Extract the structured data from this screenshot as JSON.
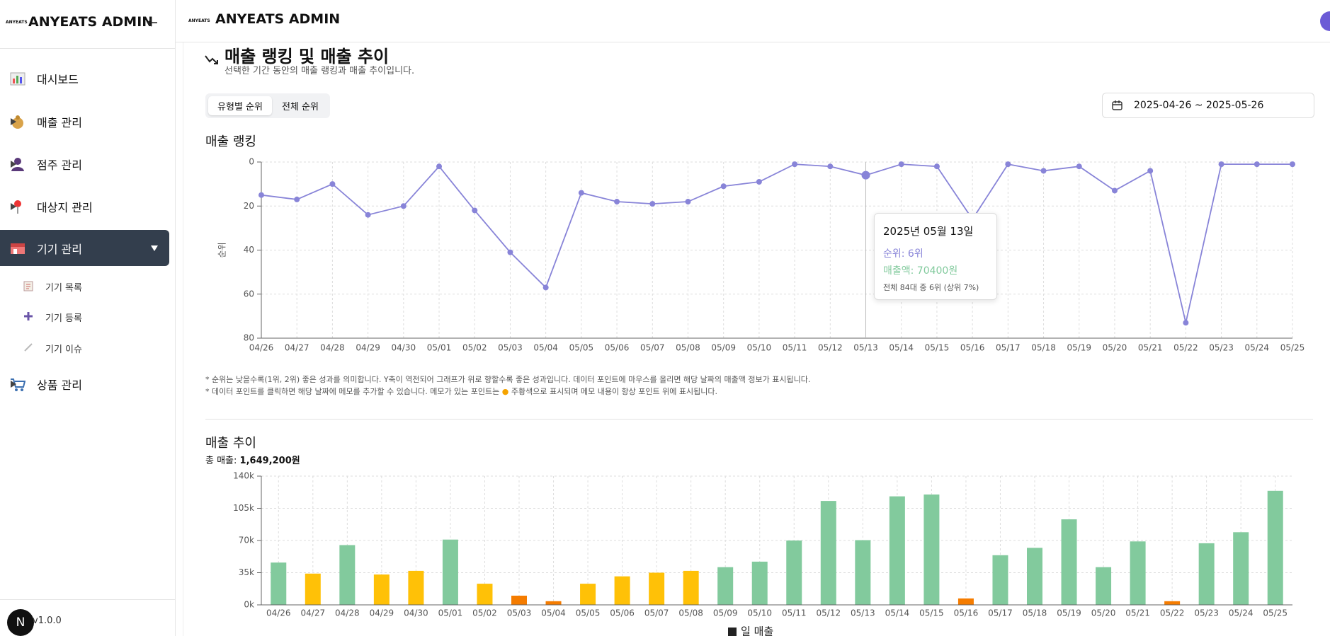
{
  "sidebar": {
    "logo": "ANYEATS",
    "title": "ANYEATS ADMIN",
    "menu": [
      "대시보드",
      "매출 관리",
      "점주 관리",
      "대상지 관리",
      "기기 관리",
      "상품 관리"
    ],
    "submenu": [
      "기기 목록",
      "기기 등록",
      "기기 이슈"
    ],
    "badge": "N",
    "version": "v1.0.0"
  },
  "header": {
    "logo": "ANYEATS",
    "title": "ANYEATS ADMIN"
  },
  "section": {
    "title": "매출 랭킹 및 매출 추이",
    "subtitle": "선택한 기간 동안의 매출 랭킹과 매출 추이입니다.",
    "tabs": [
      "유형별 순위",
      "전체 순위"
    ],
    "date_range": "2025-04-26 ~ 2025-05-26",
    "notes": [
      "* 순위는 낮을수록(1위, 2위) 좋은 성과를 의미합니다. Y축이 역전되어 그래프가 위로 향할수록 좋은 성과입니다. 데이터 포인트에 마우스를 올리면 해당 날짜의 매출액 정보가 표시됩니다.",
      "* 데이터 포인트를 클릭하면 해당 날짜에 메모를 추가할 수 있습니다. 메모가 있는 포인트는",
      "주황색으로 표시되며 메모 내용이 항상 포인트 위에 표시됩니다."
    ],
    "total_label": "총 매출:",
    "total": "1,649,200원"
  },
  "tooltip": {
    "date": "2025년 05월 13일",
    "rank": "순위: 6위",
    "sales": "매출액: 70400원",
    "detail": "전체 84대 중 6위 (상위 7%)"
  },
  "chart_data": [
    {
      "type": "line",
      "title": "매출 랭킹",
      "y_label": "순위",
      "categories": [
        "04/26",
        "04/27",
        "04/28",
        "04/29",
        "04/30",
        "05/01",
        "05/02",
        "05/03",
        "05/04",
        "05/05",
        "05/06",
        "05/07",
        "05/08",
        "05/09",
        "05/10",
        "05/11",
        "05/12",
        "05/13",
        "05/14",
        "05/15",
        "05/16",
        "05/17",
        "05/18",
        "05/19",
        "05/20",
        "05/21",
        "05/22",
        "05/23",
        "05/24",
        "05/25"
      ],
      "values": [
        15,
        17,
        10,
        24,
        20,
        2,
        22,
        41,
        57,
        14,
        18,
        19,
        18,
        11,
        9,
        1,
        2,
        6,
        1,
        2,
        26,
        1,
        4,
        2,
        13,
        4,
        73,
        1,
        1,
        1
      ],
      "color": "#8884d8",
      "ylim": [
        0,
        80
      ],
      "y_inverted": true,
      "yticks": [
        0,
        20,
        40,
        60,
        80
      ],
      "grid": true
    },
    {
      "type": "bar",
      "title": "매출 추이",
      "categories": [
        "04/26",
        "04/27",
        "04/28",
        "04/29",
        "04/30",
        "05/01",
        "05/02",
        "05/03",
        "05/04",
        "05/05",
        "05/06",
        "05/07",
        "05/08",
        "05/09",
        "05/10",
        "05/11",
        "05/12",
        "05/13",
        "05/14",
        "05/15",
        "05/16",
        "05/17",
        "05/18",
        "05/19",
        "05/20",
        "05/21",
        "05/22",
        "05/23",
        "05/24",
        "05/25"
      ],
      "series": [
        {
          "name": "일 매출",
          "color": "#222222",
          "values": [
            46000,
            34000,
            65000,
            33000,
            37000,
            71000,
            23000,
            10000,
            4000,
            23000,
            31000,
            35000,
            37000,
            41000,
            47000,
            70000,
            113000,
            70400,
            118000,
            120000,
            7000,
            54000,
            62000,
            93000,
            41000,
            69000,
            4000,
            67000,
            79000,
            124000
          ],
          "bar_colors": [
            "#82ca9d",
            "#ffc107",
            "#82ca9d",
            "#ffc107",
            "#ffc107",
            "#82ca9d",
            "#ffc107",
            "#f57c00",
            "#f57c00",
            "#ffc107",
            "#ffc107",
            "#ffc107",
            "#ffc107",
            "#82ca9d",
            "#82ca9d",
            "#82ca9d",
            "#82ca9d",
            "#82ca9d",
            "#82ca9d",
            "#82ca9d",
            "#f57c00",
            "#82ca9d",
            "#82ca9d",
            "#82ca9d",
            "#82ca9d",
            "#82ca9d",
            "#f57c00",
            "#82ca9d",
            "#82ca9d",
            "#82ca9d"
          ]
        }
      ],
      "ylim": [
        0,
        140000
      ],
      "yticks": [
        {
          "value": 0,
          "label": "0k"
        },
        {
          "value": 35000,
          "label": "35k"
        },
        {
          "value": 70000,
          "label": "70k"
        },
        {
          "value": 105000,
          "label": "105k"
        },
        {
          "value": 140000,
          "label": "140k"
        }
      ],
      "grid": true
    }
  ]
}
